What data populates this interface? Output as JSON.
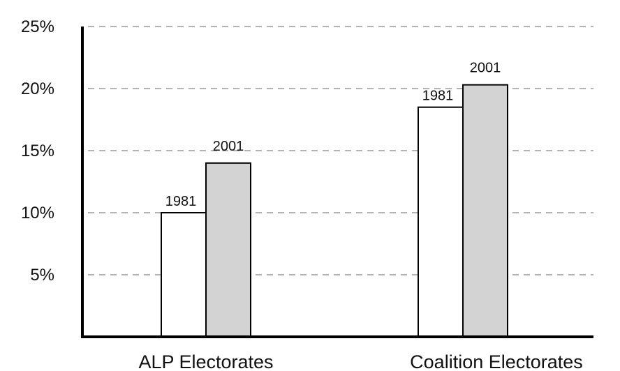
{
  "colors": {
    "bar_1981": "#ffffff",
    "bar_2001": "#d3d3d3",
    "axis": "#000000",
    "grid": "#9a9a9a"
  },
  "chart_data": {
    "type": "bar",
    "title": "",
    "xlabel": "",
    "ylabel": "",
    "ylim": [
      0,
      25
    ],
    "y_ticks": [
      {
        "value": 5,
        "label": "5%"
      },
      {
        "value": 10,
        "label": "10%"
      },
      {
        "value": 15,
        "label": "15%"
      },
      {
        "value": 20,
        "label": "20%"
      },
      {
        "value": 25,
        "label": "25%"
      }
    ],
    "grid": true,
    "grid_style": "dashed",
    "legend": "none",
    "categories": [
      "ALP Electorates",
      "Coalition Electorates"
    ],
    "series": [
      {
        "name": "1981",
        "label": "1981",
        "values": [
          10,
          18.5
        ],
        "color": "#ffffff"
      },
      {
        "name": "2001",
        "label": "2001",
        "values": [
          14,
          20.3
        ],
        "color": "#d3d3d3"
      }
    ]
  }
}
